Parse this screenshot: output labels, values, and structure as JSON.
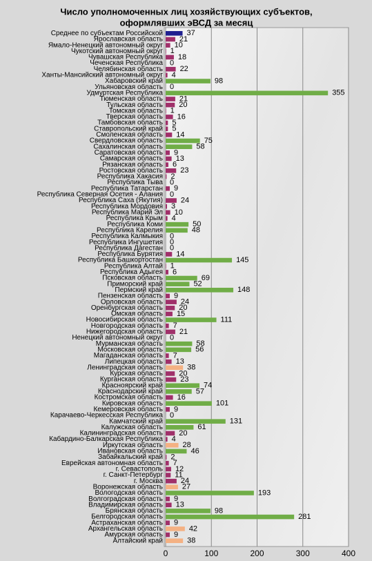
{
  "chart_data": {
    "type": "barh",
    "title": [
      "Число уполномоченных лиц хозяйствующих субъектов,",
      "оформлявших эВСД за месяц"
    ],
    "categories": [
      "Среднее по субъектам Российской",
      "Ярославская область",
      "Ямало-Ненецкий автономный округ",
      "Чукотский автономный округ",
      "Чувашская Республика",
      "Чеченская Республика",
      "Челябинская область",
      "Ханты-Мансийский автономный округ",
      "Хабаровский край",
      "Ульяновская область",
      "Удмуртская Республика",
      "Тюменская область",
      "Тульская область",
      "Томская область",
      "Тверская область",
      "Тамбовская область",
      "Ставропольский край",
      "Смоленская область",
      "Свердловская область",
      "Сахалинская область",
      "Саратовская область",
      "Самарская область",
      "Рязанская область",
      "Ростовская область",
      "Республика Хакасия",
      "Республика Тыва",
      "Республика Татарстан",
      "Республика Северная Осетия - Алания",
      "Республика Саха (Якутия)",
      "Республика Мордовия",
      "Республика Марий Эл",
      "Республика Крым",
      "Республика Коми",
      "Республика Карелия",
      "Республика Калмыкия",
      "Республика Ингушетия",
      "Республика Дагестан",
      "Республика Бурятия",
      "Республика Башкортостан",
      "Республика Алтай",
      "Республика Адыгея",
      "Псковская область",
      "Приморский край",
      "Пермский край",
      "Пензенская область",
      "Орловская область",
      "Оренбургская область",
      "Омская область",
      "Новосибирская область",
      "Новгородская область",
      "Нижегородская область",
      "Ненецкий автономный округ",
      "Мурманская область",
      "Московская область",
      "Магаданская область",
      "Липецкая область",
      "Ленинградская область",
      "Курская область",
      "Курганская область",
      "Красноярский край",
      "Краснодарский край",
      "Костромская область",
      "Кировская область",
      "Кемеровская область",
      "Карачаево-Черкесская Республика",
      "Камчатский край",
      "Калужская область",
      "Калининградская область",
      "Кабардино-Балкарская Республика",
      "Иркутская область",
      "Ивановская область",
      "Забайкальский край",
      "Еврейская автономная область",
      "г. Севастополь",
      "г. Санкт-Петербург",
      "г. Москва",
      "Воронежская область",
      "Вологодская область",
      "Волгоградская область",
      "Владимирская область",
      "Брянская область",
      "Белгородская область",
      "Астраханская область",
      "Архангельская область",
      "Амурская область",
      "Алтайский край"
    ],
    "values": [
      37,
      21,
      10,
      1,
      18,
      0,
      22,
      4,
      98,
      0,
      355,
      21,
      20,
      1,
      16,
      5,
      5,
      14,
      75,
      58,
      9,
      13,
      6,
      23,
      2,
      0,
      9,
      0,
      24,
      3,
      10,
      4,
      50,
      48,
      0,
      0,
      0,
      14,
      145,
      1,
      6,
      69,
      52,
      148,
      9,
      24,
      20,
      15,
      111,
      7,
      21,
      0,
      58,
      56,
      7,
      13,
      38,
      20,
      23,
      74,
      57,
      16,
      101,
      9,
      0,
      131,
      61,
      20,
      4,
      28,
      46,
      2,
      7,
      12,
      11,
      24,
      27,
      193,
      9,
      13,
      98,
      281,
      9,
      42,
      9,
      38
    ],
    "colors": [
      "#1f1f8f",
      "#a0306a",
      "#a0306a",
      "#a0306a",
      "#a0306a",
      "#a0306a",
      "#a0306a",
      "#a0306a",
      "#70ad47",
      "#a0306a",
      "#70ad47",
      "#a0306a",
      "#a0306a",
      "#a0306a",
      "#a0306a",
      "#a0306a",
      "#a0306a",
      "#a0306a",
      "#70ad47",
      "#70ad47",
      "#a0306a",
      "#a0306a",
      "#a0306a",
      "#a0306a",
      "#a0306a",
      "#a0306a",
      "#a0306a",
      "#a0306a",
      "#a0306a",
      "#a0306a",
      "#a0306a",
      "#a0306a",
      "#70ad47",
      "#70ad47",
      "#a0306a",
      "#a0306a",
      "#a0306a",
      "#a0306a",
      "#70ad47",
      "#a0306a",
      "#a0306a",
      "#70ad47",
      "#70ad47",
      "#70ad47",
      "#a0306a",
      "#a0306a",
      "#a0306a",
      "#a0306a",
      "#70ad47",
      "#a0306a",
      "#a0306a",
      "#a0306a",
      "#70ad47",
      "#70ad47",
      "#a0306a",
      "#a0306a",
      "#f4b183",
      "#a0306a",
      "#a0306a",
      "#70ad47",
      "#70ad47",
      "#a0306a",
      "#70ad47",
      "#a0306a",
      "#a0306a",
      "#70ad47",
      "#70ad47",
      "#a0306a",
      "#a0306a",
      "#f4b183",
      "#70ad47",
      "#a0306a",
      "#a0306a",
      "#a0306a",
      "#a0306a",
      "#a0306a",
      "#f4b183",
      "#70ad47",
      "#a0306a",
      "#a0306a",
      "#70ad47",
      "#70ad47",
      "#a0306a",
      "#f4b183",
      "#a0306a",
      "#f4b183"
    ],
    "xlim": [
      0,
      400
    ],
    "xticks": [
      0,
      100,
      200,
      300,
      400
    ],
    "grid": true
  }
}
